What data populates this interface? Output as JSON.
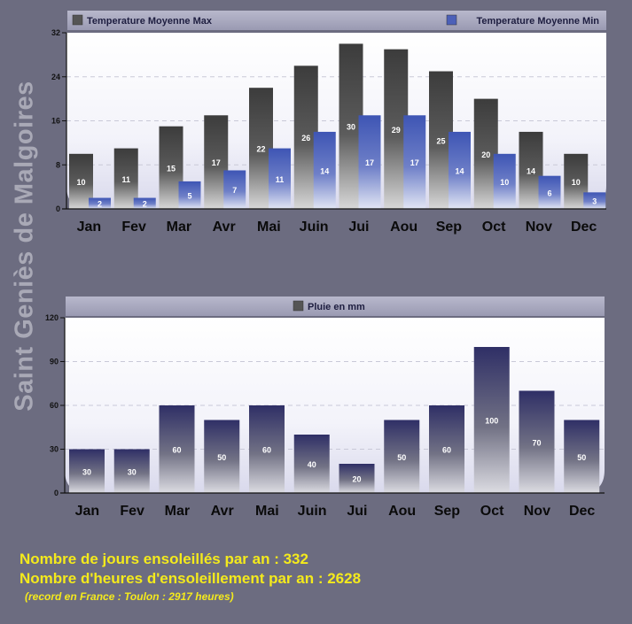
{
  "page": {
    "side_title": "Saint Geniès de Malgoires"
  },
  "chart_data": [
    {
      "type": "bar",
      "title": "",
      "categories": [
        "Jan",
        "Fev",
        "Mar",
        "Avr",
        "Mai",
        "Juin",
        "Jui",
        "Aou",
        "Sep",
        "Oct",
        "Nov",
        "Dec"
      ],
      "series": [
        {
          "name": "Temperature Moyenne Max",
          "color": "#4a4a4a",
          "values": [
            10,
            11,
            15,
            17,
            22,
            26,
            30,
            29,
            25,
            20,
            14,
            10
          ]
        },
        {
          "name": "Temperature Moyenne Min",
          "color": "#4c60b8",
          "values": [
            2,
            2,
            5,
            7,
            11,
            14,
            17,
            17,
            14,
            10,
            6,
            3
          ]
        }
      ],
      "ylim": [
        0,
        32
      ],
      "yticks": [
        0,
        8,
        16,
        24,
        32
      ],
      "xlabel": "",
      "ylabel": "",
      "grid": true,
      "legend": "top"
    },
    {
      "type": "bar",
      "title": "",
      "categories": [
        "Jan",
        "Fev",
        "Mar",
        "Avr",
        "Mai",
        "Juin",
        "Jui",
        "Aou",
        "Sep",
        "Oct",
        "Nov",
        "Dec"
      ],
      "series": [
        {
          "name": "Pluie en mm",
          "color": "#35356a",
          "values": [
            30,
            30,
            60,
            50,
            60,
            40,
            20,
            50,
            60,
            100,
            70,
            50
          ]
        }
      ],
      "ylim": [
        0,
        120
      ],
      "yticks": [
        0,
        30,
        60,
        90,
        120
      ],
      "xlabel": "",
      "ylabel": "",
      "grid": true,
      "legend": "top"
    }
  ],
  "footer": {
    "sun_days": "Nombre de jours ensoleillés par an : 332",
    "sun_hours": "Nombre d'heures d'ensoleillement par an : 2628",
    "record_note": "(record en France : Toulon : 2917 heures)"
  }
}
